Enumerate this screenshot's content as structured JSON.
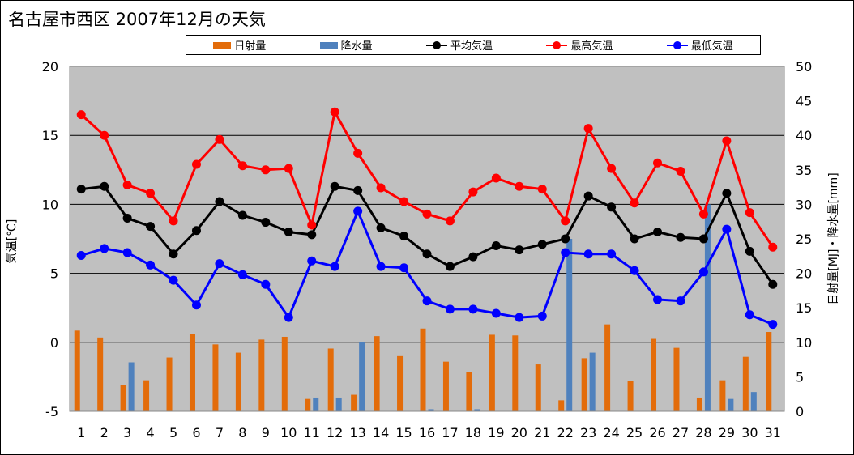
{
  "title": "名古屋市西区  2007年12月の天気",
  "legend": {
    "items": [
      {
        "label": "日射量",
        "kind": "bar",
        "color": "#E36C0A"
      },
      {
        "label": "降水量",
        "kind": "bar",
        "color": "#4F81BD"
      },
      {
        "label": "平均気温",
        "kind": "line",
        "color": "#000000"
      },
      {
        "label": "最高気温",
        "kind": "line",
        "color": "#FF0000"
      },
      {
        "label": "最低気温",
        "kind": "line",
        "color": "#0000FF"
      }
    ]
  },
  "axes": {
    "left_label": "気温[℃]",
    "right_label": "日射量[MJ]・降水量[mm]"
  },
  "chart_data": {
    "type": "line",
    "title": "名古屋市西区  2007年12月の天気",
    "x": [
      1,
      2,
      3,
      4,
      5,
      6,
      7,
      8,
      9,
      10,
      11,
      12,
      13,
      14,
      15,
      16,
      17,
      18,
      19,
      20,
      21,
      22,
      23,
      24,
      25,
      26,
      27,
      28,
      29,
      30,
      31
    ],
    "xlabel": "",
    "ylabel": "気温[℃]",
    "ylim": [
      -5,
      20
    ],
    "yticks": [
      -5,
      0,
      5,
      10,
      15,
      20
    ],
    "y2label": "日射量[MJ]・降水量[mm]",
    "y2lim": [
      0,
      50
    ],
    "y2ticks": [
      0,
      5,
      10,
      15,
      20,
      25,
      30,
      35,
      40,
      45,
      50
    ],
    "grid": true,
    "legend_position": "top",
    "background": "#C0C0C0",
    "series": [
      {
        "name": "日射量",
        "type": "bar",
        "axis": "right",
        "color": "#E36C0A",
        "values": [
          11.7,
          10.7,
          3.8,
          4.5,
          7.8,
          11.2,
          9.7,
          8.5,
          10.4,
          10.8,
          1.8,
          9.1,
          2.4,
          10.9,
          8.0,
          12.0,
          7.2,
          5.7,
          11.1,
          11.0,
          6.8,
          1.6,
          7.7,
          12.6,
          4.4,
          10.5,
          9.2,
          2.0,
          4.5,
          7.9,
          11.5
        ]
      },
      {
        "name": "降水量",
        "type": "bar",
        "axis": "right",
        "color": "#4F81BD",
        "values": [
          0,
          0,
          7.1,
          0,
          0,
          0,
          0,
          0,
          0,
          0,
          2.0,
          2.0,
          10.0,
          0,
          0,
          0.3,
          0,
          0.3,
          0,
          0,
          0,
          25.0,
          8.5,
          0,
          0,
          0,
          0,
          30.0,
          1.8,
          2.8,
          0
        ]
      },
      {
        "name": "平均気温",
        "type": "line",
        "axis": "left",
        "color": "#000000",
        "values": [
          11.1,
          11.3,
          9.0,
          8.4,
          6.4,
          8.1,
          10.2,
          9.2,
          8.7,
          8.0,
          7.8,
          11.3,
          11.0,
          8.3,
          7.7,
          6.4,
          5.5,
          6.2,
          7.0,
          6.7,
          7.1,
          7.5,
          10.6,
          9.8,
          7.5,
          8.0,
          7.6,
          7.5,
          10.8,
          6.6,
          4.2
        ]
      },
      {
        "name": "最高気温",
        "type": "line",
        "axis": "left",
        "color": "#FF0000",
        "values": [
          16.5,
          15.0,
          11.4,
          10.8,
          8.8,
          12.9,
          14.7,
          12.8,
          12.5,
          12.6,
          8.5,
          16.7,
          13.7,
          11.2,
          10.2,
          9.3,
          8.8,
          10.9,
          11.9,
          11.3,
          11.1,
          8.8,
          15.5,
          12.6,
          10.1,
          13.0,
          12.4,
          9.3,
          14.6,
          9.4,
          6.9
        ]
      },
      {
        "name": "最低気温",
        "type": "line",
        "axis": "left",
        "color": "#0000FF",
        "values": [
          6.3,
          6.8,
          6.5,
          5.6,
          4.5,
          2.7,
          5.7,
          4.9,
          4.2,
          1.8,
          5.9,
          5.5,
          9.5,
          5.5,
          5.4,
          3.0,
          2.4,
          2.4,
          2.1,
          1.8,
          1.9,
          6.5,
          6.4,
          6.4,
          5.2,
          3.1,
          3.0,
          5.1,
          8.2,
          2.0,
          1.3
        ]
      }
    ]
  }
}
